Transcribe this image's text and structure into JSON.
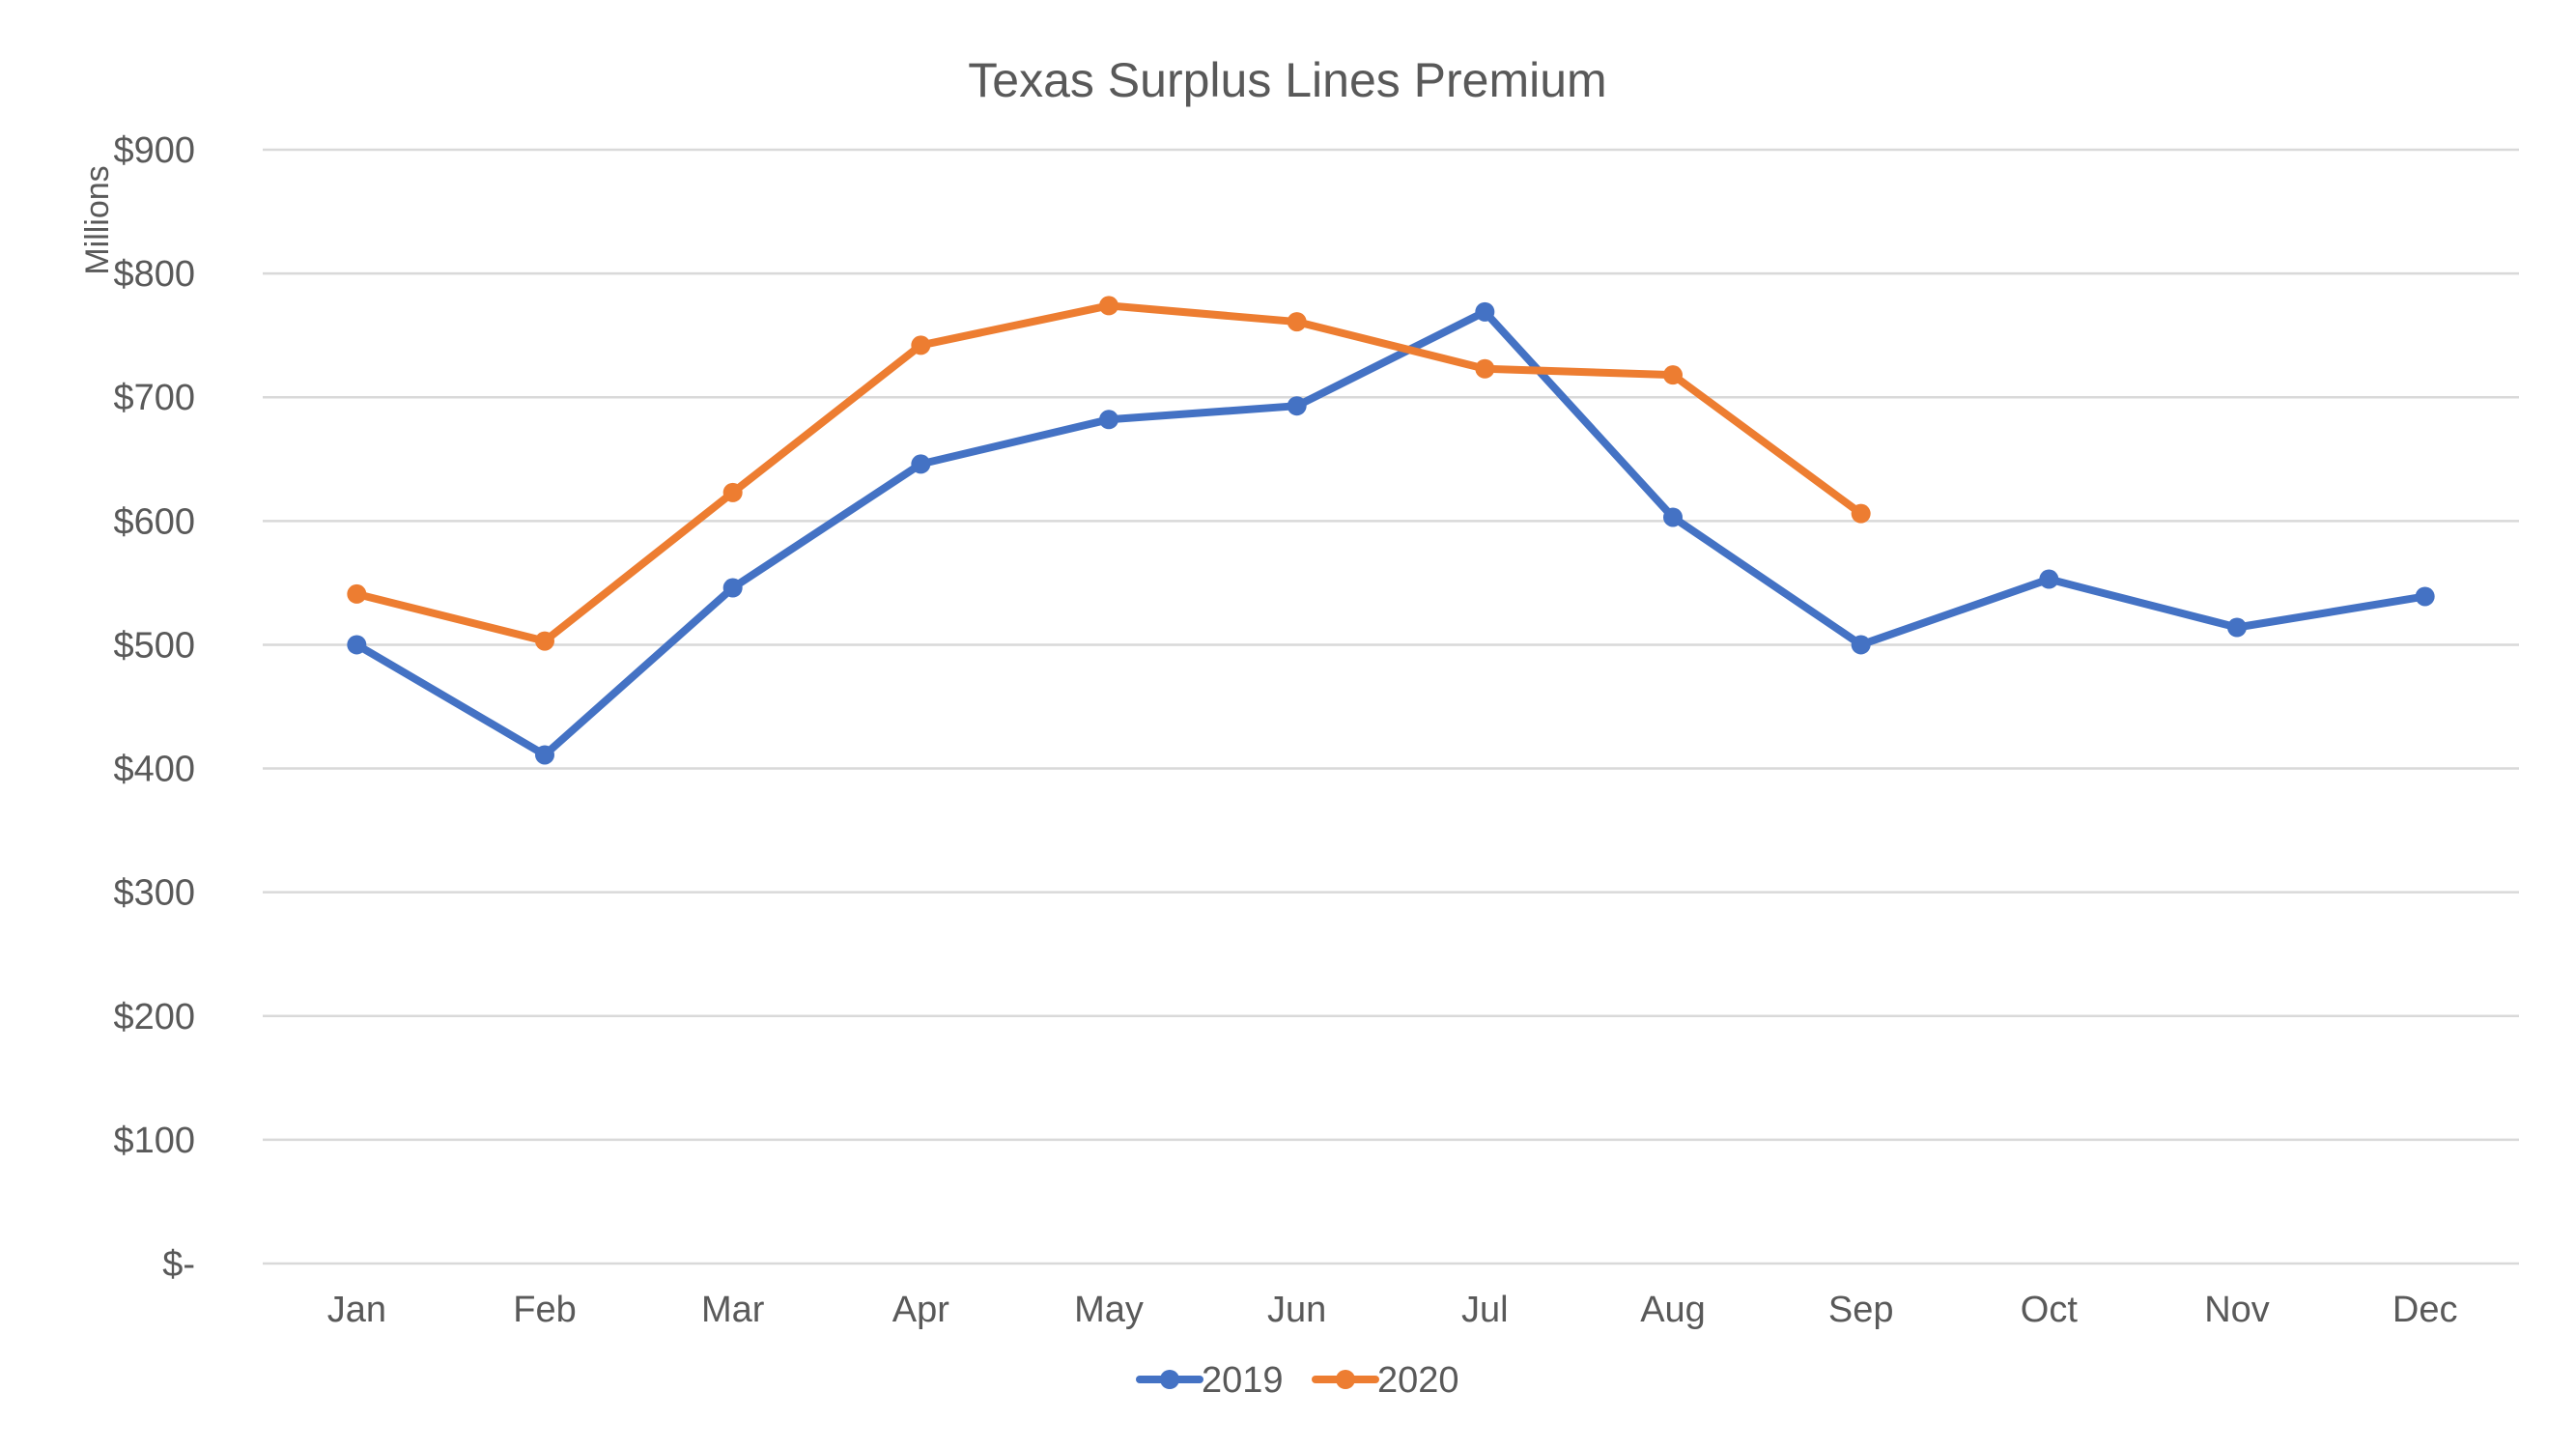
{
  "chart_data": {
    "type": "line",
    "title": "Texas Surplus Lines Premium",
    "xlabel": "",
    "ylabel": "Millions",
    "categories": [
      "Jan",
      "Feb",
      "Mar",
      "Apr",
      "May",
      "Jun",
      "Jul",
      "Aug",
      "Sep",
      "Oct",
      "Nov",
      "Dec"
    ],
    "ylim": [
      0,
      900
    ],
    "y_ticks": [
      0,
      100,
      200,
      300,
      400,
      500,
      600,
      700,
      800,
      900
    ],
    "y_tick_labels": [
      "$-",
      "$100",
      "$200",
      "$300",
      "$400",
      "$500",
      "$600",
      "$700",
      "$800",
      "$900"
    ],
    "grid": true,
    "legend": "bottom",
    "series": [
      {
        "name": "2019",
        "color": "#4472c4",
        "values": [
          500,
          411,
          546,
          646,
          682,
          693,
          769,
          603,
          500,
          553,
          514,
          539
        ]
      },
      {
        "name": "2020",
        "color": "#ed7d31",
        "values": [
          541,
          503,
          623,
          742,
          774,
          761,
          723,
          718,
          606,
          null,
          null,
          null
        ]
      }
    ]
  }
}
